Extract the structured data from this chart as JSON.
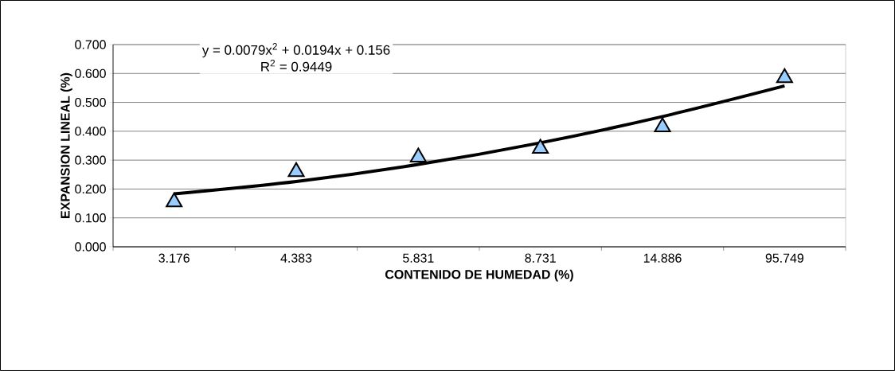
{
  "chart_data": {
    "type": "scatter",
    "xlabel": "CONTENIDO DE HUMEDAD (%)",
    "ylabel": "EXPANSION LINEAL (%)",
    "categories": [
      "3.176",
      "4.383",
      "5.831",
      "8.731",
      "14.886",
      "95.749"
    ],
    "series": [
      {
        "color": "#99ccff",
        "marker": "triangle",
        "values": [
          0.155,
          0.26,
          0.31,
          0.34,
          0.415,
          0.585
        ]
      },
      {
        "type": "line",
        "color": "#000000",
        "marker": "none",
        "line_style": "solid",
        "values": [
          0.183,
          0.226,
          0.285,
          0.36,
          0.451,
          0.557
        ]
      }
    ],
    "ylim": [
      0,
      0.7
    ],
    "yticks": [
      {
        "value": 0,
        "label": "0.000"
      },
      {
        "value": 0.1,
        "label": "0.100"
      },
      {
        "value": 0.2,
        "label": "0.200"
      },
      {
        "value": 0.3,
        "label": "0.300"
      },
      {
        "value": 0.4,
        "label": "0.400"
      },
      {
        "value": 0.5,
        "label": "0.500"
      },
      {
        "value": 0.6,
        "label": "0.600"
      },
      {
        "value": 0.7,
        "label": "0.700"
      }
    ],
    "grid": "y",
    "annotations": [
      "y = 0.0079x$^{2}$ + 0.0194x + 0.156",
      "R$^{2}$ = 0.9449"
    ]
  }
}
